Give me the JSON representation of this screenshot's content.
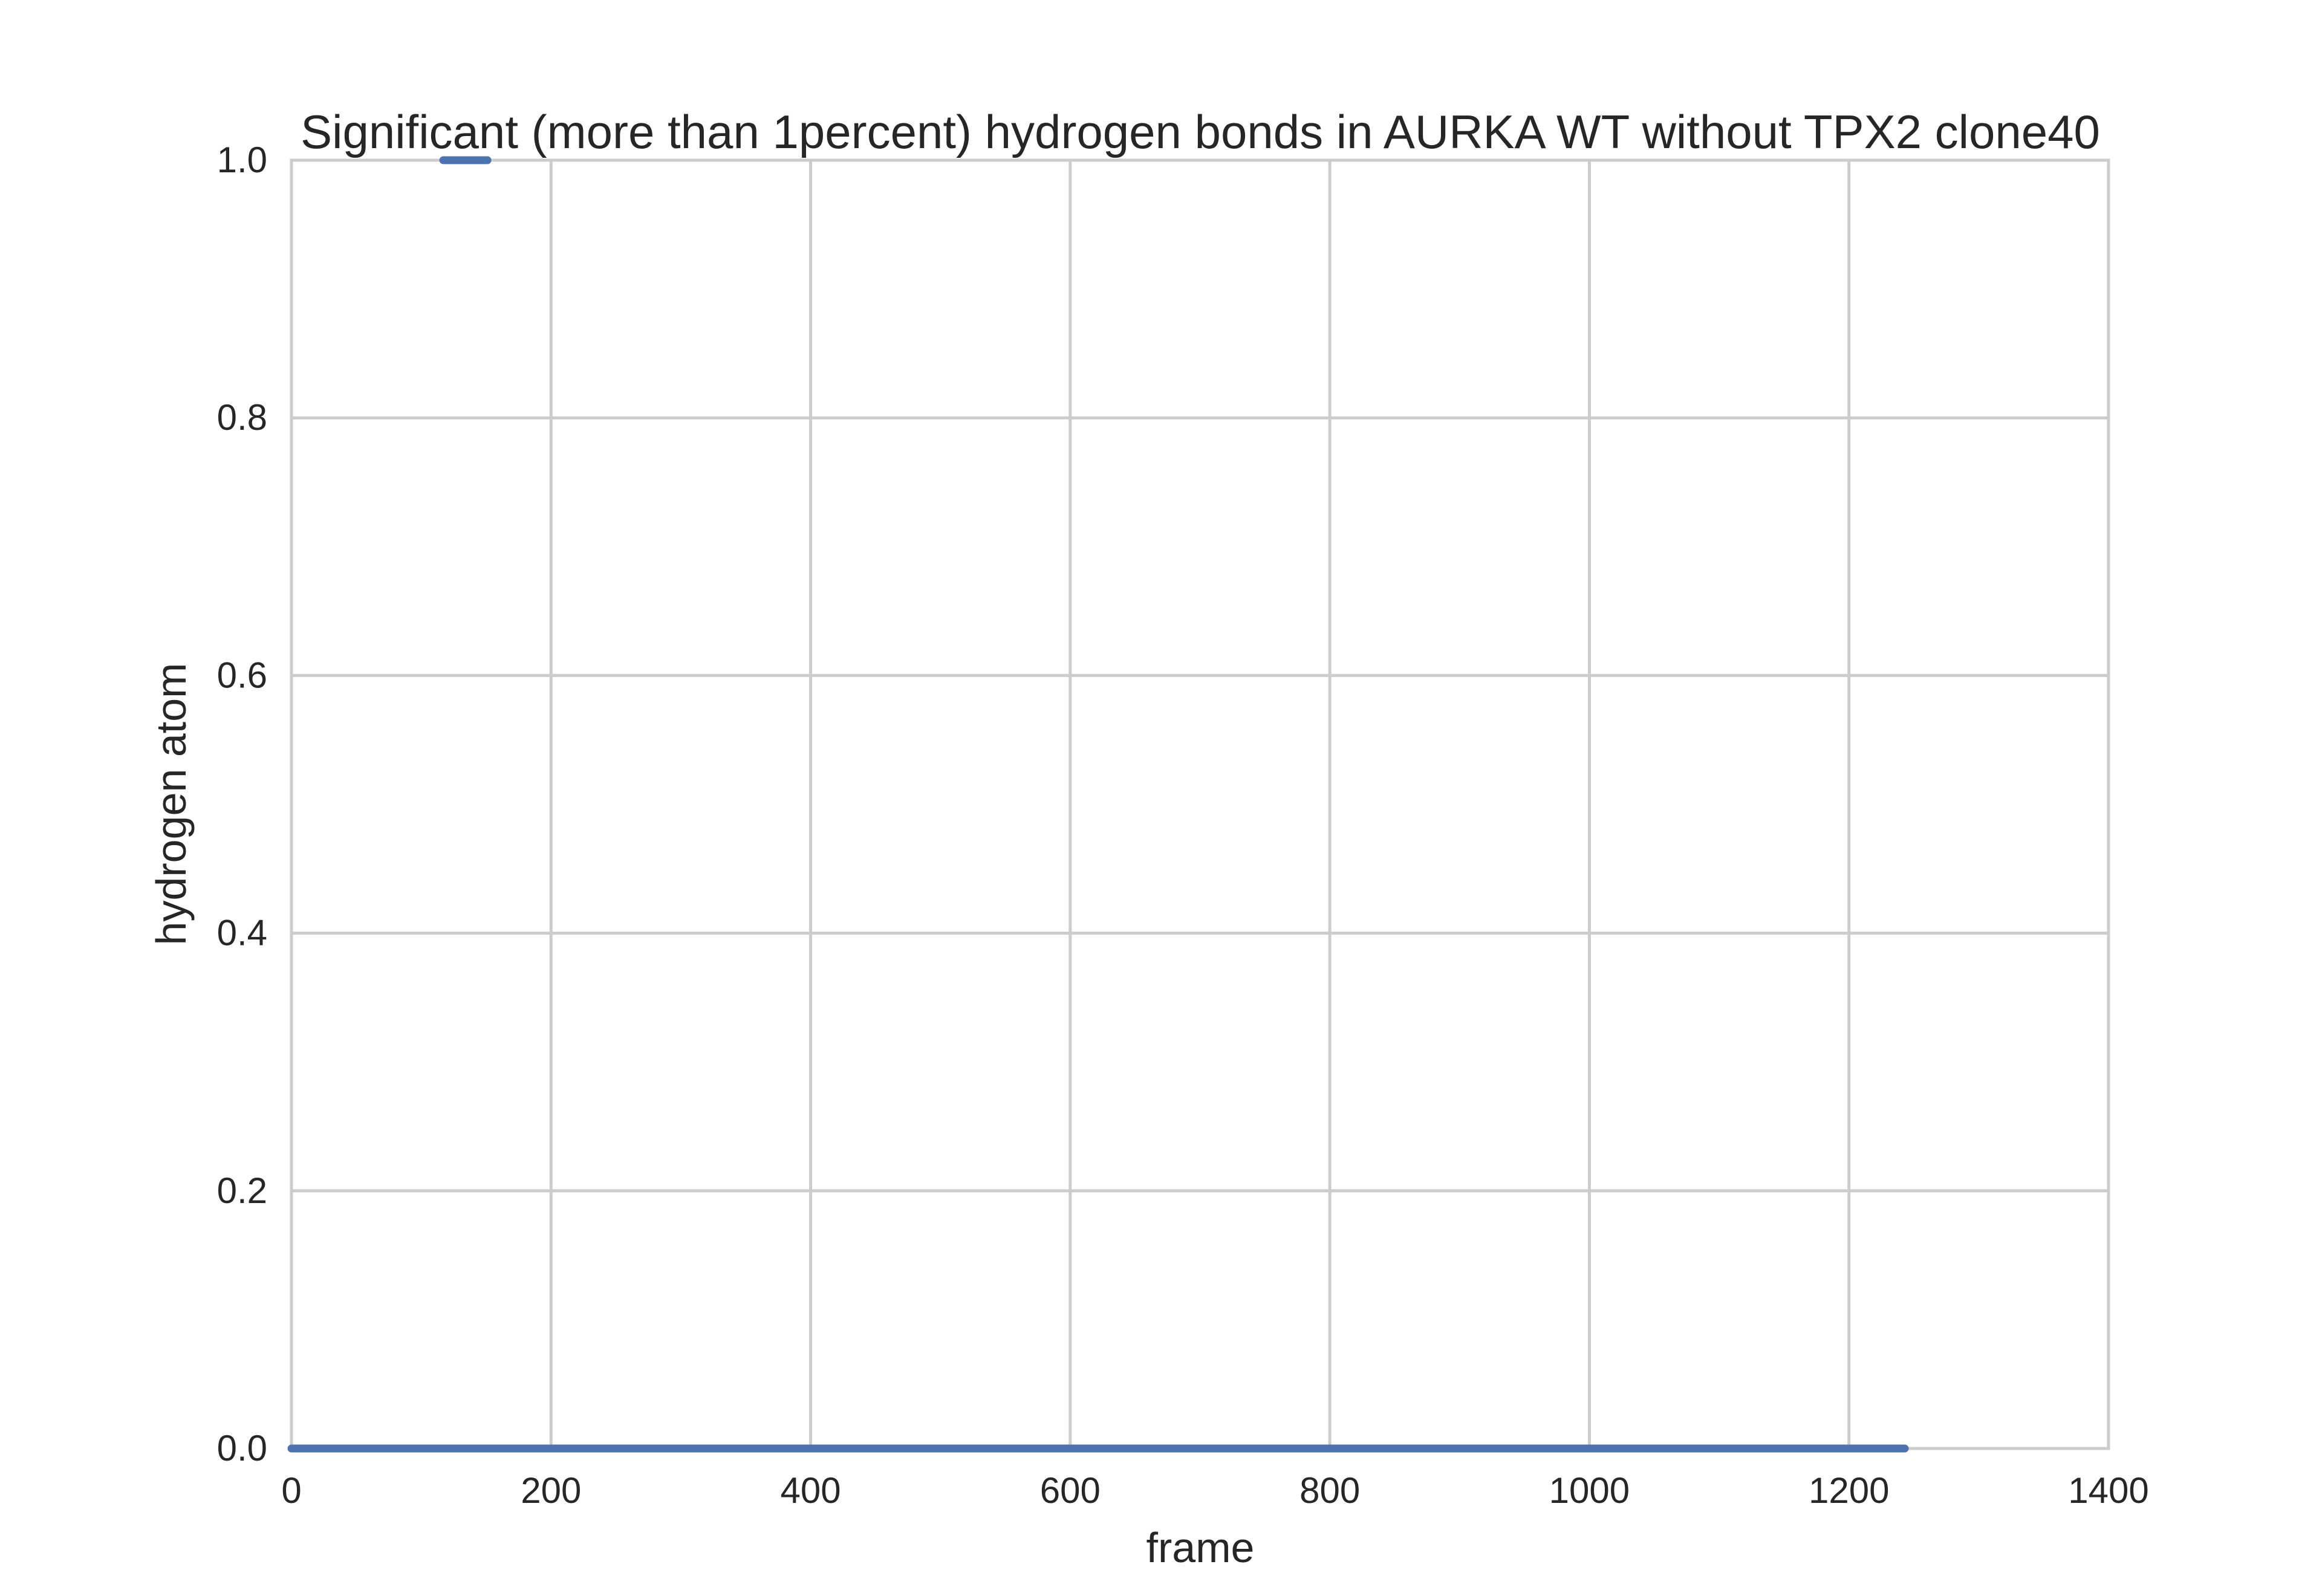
{
  "chart_data": {
    "type": "line",
    "title": "Significant (more than 1percent) hydrogen bonds in AURKA WT without TPX2 clone40",
    "xlabel": "frame",
    "ylabel": "hydrogen atom",
    "xlim": [
      0,
      1400
    ],
    "ylim": [
      0.0,
      1.0
    ],
    "xticks": [
      "0",
      "200",
      "400",
      "600",
      "800",
      "1000",
      "1200",
      "1400"
    ],
    "yticks": [
      "0.0",
      "0.2",
      "0.4",
      "0.6",
      "0.8",
      "1.0"
    ],
    "grid": true,
    "legend": "none",
    "series_color": "#4c72b0",
    "series": [
      {
        "segments": [
          {
            "x": [
              0,
              1243
            ],
            "y": [
              0.0,
              0.0
            ]
          },
          {
            "x": [
              117,
              151
            ],
            "y": [
              1.0,
              1.0
            ]
          }
        ]
      }
    ]
  }
}
